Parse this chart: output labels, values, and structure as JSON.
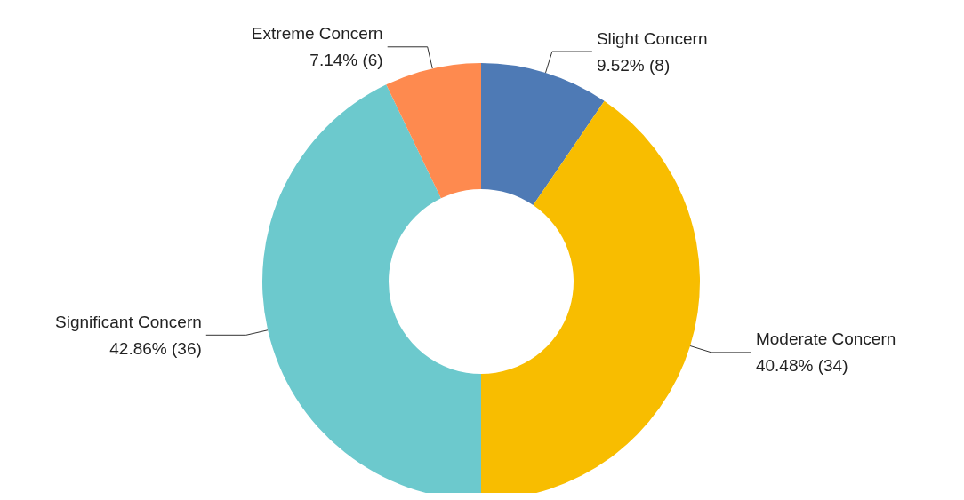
{
  "chart_data": {
    "type": "donut",
    "categories": [
      "Slight Concern",
      "Moderate Concern",
      "Significant Concern",
      "Extreme Concern"
    ],
    "values": [
      8,
      34,
      36,
      6
    ],
    "value_labels": [
      "9.52% (8)",
      "40.48% (34)",
      "42.86% (36)",
      "7.14% (6)"
    ],
    "colors": [
      "#4e7ab5",
      "#f8bd00",
      "#6cc9cd",
      "#fe8a4f"
    ],
    "legend": false
  }
}
